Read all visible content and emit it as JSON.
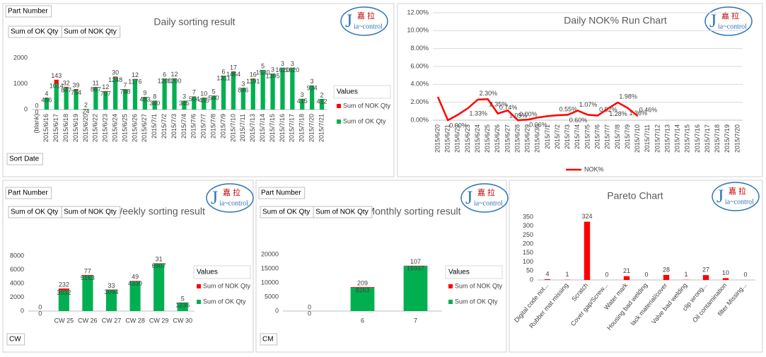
{
  "logo": {
    "initial": "J",
    "cn": "嘉 拉",
    "en": "ia~control"
  },
  "chart_data": [
    {
      "type": "stacked_bar",
      "title": "Daily sorting result",
      "filters": [
        "Part Number"
      ],
      "value_fields": [
        "Sum of OK Qty",
        "Sum of NOK Qty"
      ],
      "row_field": "Sort Date",
      "legend_title": "Values",
      "categories": [
        "(blank)",
        "2015/6/16",
        "2015/6/17",
        "2015/6/18",
        "2015/6/19",
        "2015/6/20",
        "2015/6/22",
        "2015/6/23",
        "2015/6/24",
        "2015/6/25",
        "2015/6/26",
        "2015/6/27",
        "2015/7/1",
        "2015/7/2",
        "2015/7/3",
        "2015/7/4",
        "2015/7/6",
        "2015/7/7",
        "2015/7/8",
        "2015/7/9",
        "2015/7/10",
        "2015/7/11",
        "2015/7/13",
        "2015/7/14",
        "2015/7/15",
        "2015/7/16",
        "2015/7/17",
        "2015/7/18",
        "2015/7/20",
        "2015/7/21"
      ],
      "series": [
        {
          "name": "Sum of NOK Qty",
          "color": "#ff0000",
          "values": [
            0,
            4,
            143,
            32,
            39,
            2,
            11,
            12,
            30,
            7,
            12,
            9,
            8,
            6,
            12,
            3,
            7,
            10,
            5,
            6,
            17,
            3,
            16,
            5,
            3,
            3,
            3,
            3,
            3,
            2
          ]
        },
        {
          "name": "Sum of OK Qty",
          "color": "#00b050",
          "values": [
            0,
            456,
            1014,
            847,
            754,
            24,
            867,
            707,
            1248,
            788,
            1176,
            483,
            340,
            1200,
            1200,
            345,
            504,
            455,
            540,
            1311,
            1464,
            846,
            1191,
            1530,
            1395,
            1620,
            1620,
            415,
            934,
            412
          ]
        }
      ],
      "ylim": [
        0,
        2000
      ],
      "yticks": [
        0,
        1000,
        2000
      ],
      "grid": false
    },
    {
      "type": "line",
      "title": "Daily NOK% Run Chart",
      "legend": "bottom",
      "categories": [
        "2015/6/20",
        "2015/6/21",
        "2015/6/22",
        "2015/6/23",
        "2015/6/24",
        "2015/6/25",
        "2015/6/26",
        "2015/6/27",
        "2015/6/28",
        "2015/6/29",
        "2015/6/30",
        "2015/7/1",
        "2015/7/2",
        "2015/7/3",
        "2015/7/4",
        "2015/7/5",
        "2015/7/6",
        "2015/7/7",
        "2015/7/8",
        "2015/7/9",
        "2015/7/10",
        "2015/7/11",
        "2015/7/12",
        "2015/7/13",
        "2015/7/14",
        "2015/7/15",
        "2015/7/16",
        "2015/7/17",
        "2015/7/18",
        "2015/7/19",
        "2015/7/20"
      ],
      "series": [
        {
          "name": "NOK%",
          "color": "#ff0000",
          "values": [
            2.6,
            0.0,
            0.6,
            1.33,
            2.3,
            2.35,
            0.74,
            1.09,
            0.0,
            0.06,
            0.3,
            0.45,
            0.55,
            0.6,
            1.07,
            0.6,
            0.52,
            1.28,
            1.98,
            1.36,
            0.46,
            null,
            null,
            null,
            null,
            null,
            null,
            null,
            null,
            null,
            null
          ],
          "value_labels": [
            null,
            "0.00%",
            null,
            "1.33%",
            "2.30%",
            "2.35%",
            "0.74%",
            "1.09%",
            "0.00%",
            "0.06%",
            null,
            null,
            "0.55%",
            "0.60%",
            "1.07%",
            null,
            "0.52%",
            "1.28%",
            "1.98%",
            "1.36%",
            "0.46%",
            null,
            null,
            null,
            null,
            null,
            null,
            null,
            null,
            null,
            null
          ]
        }
      ],
      "ylim": [
        0,
        12
      ],
      "yticks": [
        {
          "value": 0,
          "label": "0.00%"
        },
        {
          "value": 2,
          "label": "2.00%"
        },
        {
          "value": 4,
          "label": "4.00%"
        },
        {
          "value": 6,
          "label": "6.00%"
        },
        {
          "value": 8,
          "label": "8.00%"
        },
        {
          "value": 10,
          "label": "10.00%"
        },
        {
          "value": 12,
          "label": "12.00%"
        }
      ],
      "grid": true
    },
    {
      "type": "stacked_bar",
      "title": "Weekly sorting result",
      "filters": [
        "Part Number"
      ],
      "value_fields": [
        "Sum of OK Qty",
        "Sum of NOK Qty"
      ],
      "row_field": "CW",
      "legend_title": "Values",
      "categories": [
        null,
        "CW 25",
        "CW 26",
        "CW 27",
        "CW 28",
        "CW 29",
        "CW 30"
      ],
      "series": [
        {
          "name": "Sum of NOK Qty",
          "color": "#ff0000",
          "values": [
            0,
            232,
            77,
            33,
            49,
            31,
            5
          ]
        },
        {
          "name": "Sum of OK Qty",
          "color": "#00b050",
          "values": [
            0,
            3032,
            5163,
            3094,
            4330,
            6907,
            1236
          ]
        }
      ],
      "ylim": [
        0,
        8000
      ],
      "yticks": [
        0,
        2000,
        4000,
        6000,
        8000
      ],
      "grid": false
    },
    {
      "type": "stacked_bar",
      "title": "Monthly sorting result",
      "filters": [
        "Part Number"
      ],
      "value_fields": [
        "Sum of OK Qty",
        "Sum of NOK Qty"
      ],
      "row_field": "CM",
      "legend_title": "Values",
      "categories": [
        null,
        "6",
        "7"
      ],
      "series": [
        {
          "name": "Sum of NOK Qty",
          "color": "#ff0000",
          "values": [
            0,
            209,
            107
          ]
        },
        {
          "name": "Sum of OK Qty",
          "color": "#00b050",
          "values": [
            0,
            8263,
            15937
          ]
        }
      ],
      "ylim": [
        0,
        20000
      ],
      "yticks": [
        0,
        5000,
        10000,
        15000,
        20000
      ],
      "grid": false
    },
    {
      "type": "bar",
      "title": "Pareto Chart",
      "color": "#ff0000",
      "categories": [
        "Digital code not...",
        "Rubber mat missing",
        "Scratch",
        "Cover gap/Screw...",
        "Water mark",
        "Housing bad welding",
        "lack material/cover",
        "Valve bad welding",
        "clip wrong...",
        "Oil contamination",
        "filter Missing..."
      ],
      "values": [
        4,
        1,
        324,
        0,
        21,
        0,
        28,
        1,
        27,
        10,
        0
      ],
      "ylim": [
        0,
        350
      ],
      "yticks": [
        0,
        50,
        100,
        150,
        200,
        250,
        300,
        350
      ],
      "grid": false
    }
  ]
}
